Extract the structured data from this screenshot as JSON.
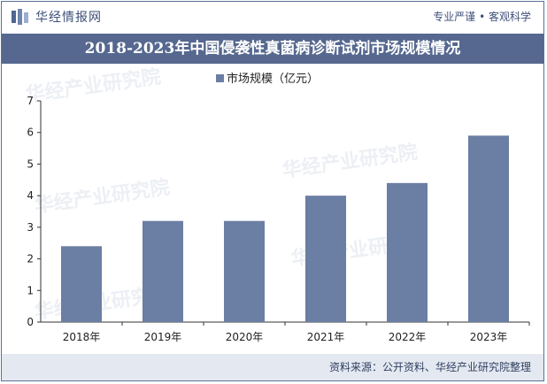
{
  "brand": {
    "name": "华经情报网",
    "tagline": "专业严谨 • 客观科学"
  },
  "title": "2018-2023年中国侵袭性真菌病诊断试剂市场规模情况",
  "watermark": "华经产业研究院",
  "source": "资料来源：公开资料、华经产业研究院整理",
  "colors": {
    "bar": "#6b7ea3",
    "header": "#56688f",
    "axis": "#333333"
  },
  "chart_data": {
    "type": "bar",
    "categories": [
      "2018年",
      "2019年",
      "2020年",
      "2021年",
      "2022年",
      "2023年"
    ],
    "series": [
      {
        "name": "市场规模（亿元）",
        "values": [
          2.4,
          3.2,
          3.2,
          4.0,
          4.4,
          5.9
        ]
      }
    ],
    "ylim": [
      0,
      7
    ],
    "yticks": [
      0,
      1,
      2,
      3,
      4,
      5,
      6,
      7
    ],
    "legend": "top-center",
    "grid": false
  }
}
